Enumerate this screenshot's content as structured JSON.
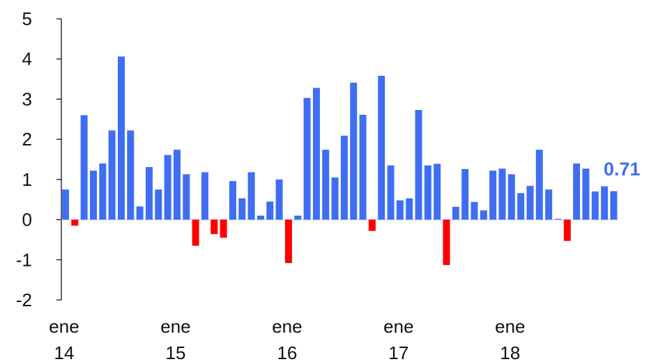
{
  "chart_data": {
    "type": "bar",
    "title": "",
    "xlabel": "",
    "ylabel": "",
    "ylim": [
      -2,
      5
    ],
    "yticks": [
      "5",
      "4",
      "3",
      "2",
      "1",
      "0",
      "-1",
      "-2"
    ],
    "x_ticks": [
      {
        "month": "ene",
        "year": "14",
        "index": 0
      },
      {
        "month": "ene",
        "year": "15",
        "index": 12
      },
      {
        "month": "ene",
        "year": "16",
        "index": 24
      },
      {
        "month": "ene",
        "year": "17",
        "index": 36
      },
      {
        "month": "ene",
        "year": "18",
        "index": 48
      }
    ],
    "values": [
      0.75,
      -0.15,
      2.6,
      1.22,
      1.4,
      2.22,
      4.06,
      2.22,
      0.33,
      1.31,
      0.75,
      1.61,
      1.74,
      1.13,
      -0.65,
      1.18,
      -0.36,
      -0.45,
      0.96,
      0.53,
      1.18,
      0.1,
      0.45,
      1.0,
      -1.08,
      0.1,
      3.03,
      3.28,
      1.74,
      1.05,
      2.09,
      3.41,
      2.61,
      -0.28,
      3.58,
      1.35,
      0.48,
      0.53,
      2.73,
      1.35,
      1.39,
      -1.13,
      0.32,
      1.26,
      0.44,
      0.23,
      1.22,
      1.27,
      1.13,
      0.66,
      0.84,
      1.74,
      0.75,
      0.02,
      -0.53,
      1.4,
      1.27,
      0.7,
      0.83,
      0.71
    ],
    "last_value_label": "0.71",
    "colors": {
      "positive": "#3f6ef2",
      "negative": "#ff0000",
      "label": "#3f6ef2",
      "axis": "#111111",
      "zero_line": "#c9d4ee"
    },
    "grid": false,
    "legend": "none"
  }
}
